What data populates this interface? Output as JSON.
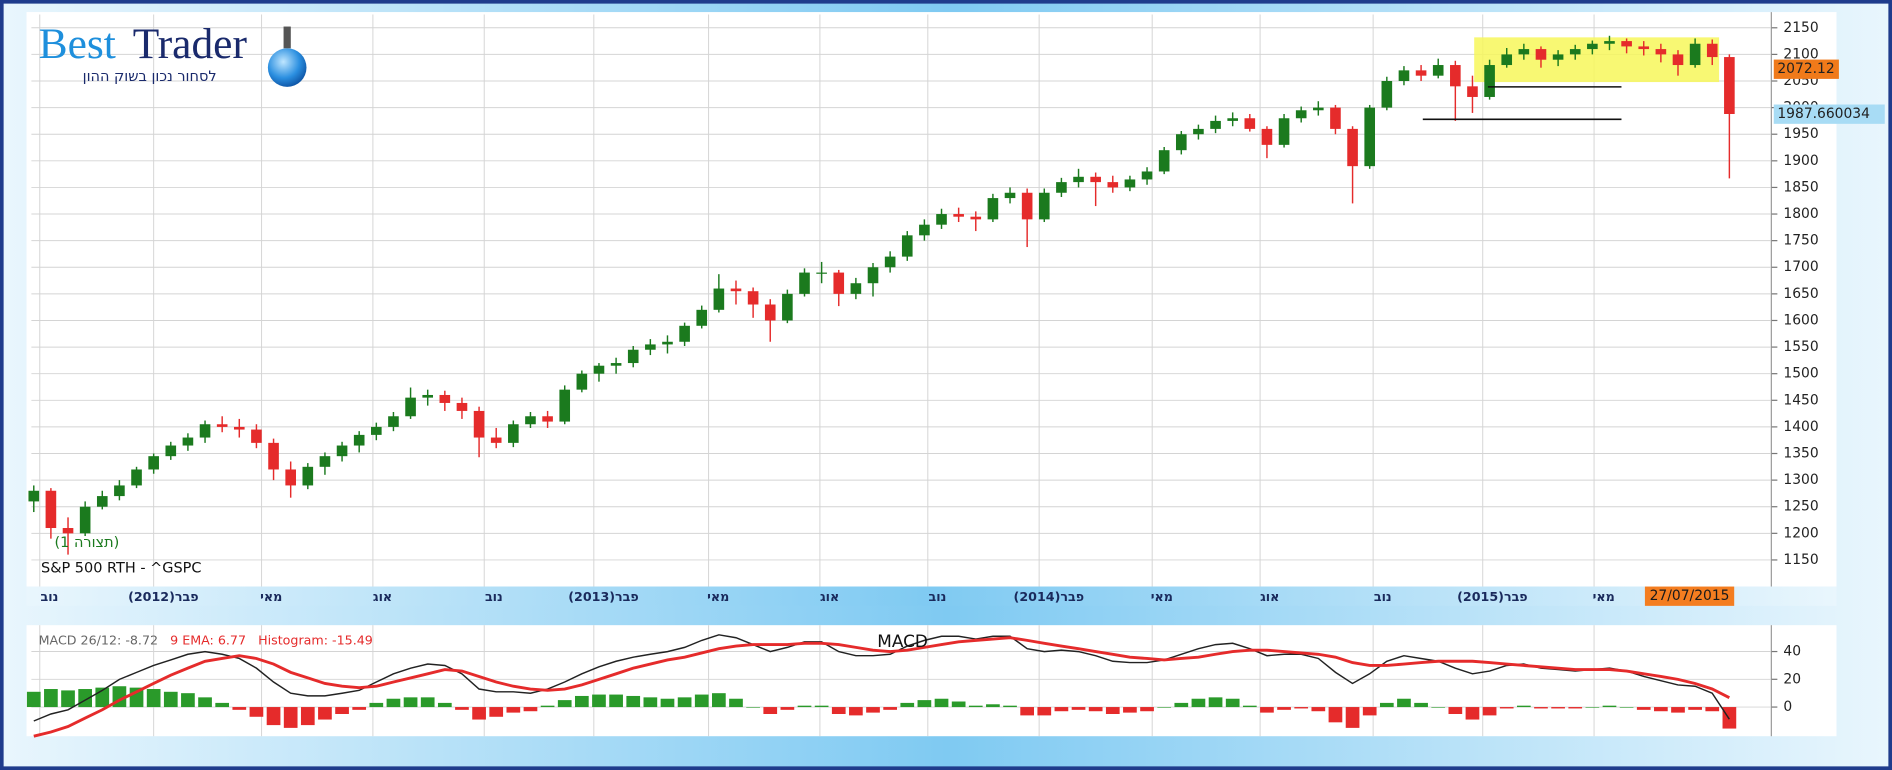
{
  "logo": {
    "brand_1": "Best",
    "brand_2": "Trader",
    "tagline": "לסחור נכון בשוק ההון"
  },
  "chart_data": [
    {
      "type": "candlestick",
      "title": "S&P 500 RTH - ^GSPC",
      "annotation": "(תצורה 1)",
      "colors": {
        "up": "#1b7a1e",
        "down": "#e52b2b"
      },
      "ohlc": [
        [
          1260,
          1290,
          1240,
          1280
        ],
        [
          1280,
          1285,
          1190,
          1210
        ],
        [
          1210,
          1230,
          1160,
          1200
        ],
        [
          1200,
          1260,
          1195,
          1250
        ],
        [
          1250,
          1280,
          1245,
          1270
        ],
        [
          1270,
          1300,
          1262,
          1290
        ],
        [
          1290,
          1325,
          1285,
          1320
        ],
        [
          1320,
          1350,
          1312,
          1345
        ],
        [
          1345,
          1372,
          1338,
          1365
        ],
        [
          1365,
          1388,
          1355,
          1380
        ],
        [
          1380,
          1412,
          1370,
          1405
        ],
        [
          1405,
          1420,
          1390,
          1400
        ],
        [
          1400,
          1415,
          1380,
          1395
        ],
        [
          1395,
          1405,
          1360,
          1370
        ],
        [
          1370,
          1378,
          1300,
          1320
        ],
        [
          1320,
          1335,
          1267,
          1290
        ],
        [
          1290,
          1332,
          1283,
          1325
        ],
        [
          1325,
          1352,
          1310,
          1345
        ],
        [
          1345,
          1372,
          1335,
          1365
        ],
        [
          1365,
          1392,
          1352,
          1385
        ],
        [
          1385,
          1408,
          1375,
          1400
        ],
        [
          1400,
          1428,
          1392,
          1420
        ],
        [
          1420,
          1474,
          1415,
          1455
        ],
        [
          1455,
          1470,
          1440,
          1460
        ],
        [
          1460,
          1468,
          1430,
          1445
        ],
        [
          1445,
          1455,
          1415,
          1430
        ],
        [
          1430,
          1438,
          1343,
          1380
        ],
        [
          1380,
          1398,
          1360,
          1370
        ],
        [
          1370,
          1412,
          1362,
          1405
        ],
        [
          1405,
          1428,
          1398,
          1420
        ],
        [
          1420,
          1430,
          1398,
          1410
        ],
        [
          1410,
          1478,
          1405,
          1470
        ],
        [
          1470,
          1506,
          1465,
          1500
        ],
        [
          1500,
          1520,
          1485,
          1515
        ],
        [
          1515,
          1530,
          1500,
          1520
        ],
        [
          1520,
          1552,
          1512,
          1545
        ],
        [
          1545,
          1565,
          1535,
          1555
        ],
        [
          1555,
          1572,
          1538,
          1560
        ],
        [
          1560,
          1596,
          1552,
          1590
        ],
        [
          1590,
          1628,
          1585,
          1620
        ],
        [
          1620,
          1687,
          1615,
          1660
        ],
        [
          1660,
          1675,
          1630,
          1655
        ],
        [
          1655,
          1662,
          1605,
          1630
        ],
        [
          1630,
          1640,
          1560,
          1600
        ],
        [
          1600,
          1658,
          1595,
          1650
        ],
        [
          1650,
          1698,
          1645,
          1690
        ],
        [
          1690,
          1710,
          1670,
          1690
        ],
        [
          1690,
          1695,
          1627,
          1650
        ],
        [
          1650,
          1680,
          1640,
          1670
        ],
        [
          1670,
          1708,
          1645,
          1700
        ],
        [
          1700,
          1730,
          1690,
          1720
        ],
        [
          1720,
          1768,
          1712,
          1760
        ],
        [
          1760,
          1790,
          1750,
          1780
        ],
        [
          1780,
          1810,
          1772,
          1800
        ],
        [
          1800,
          1812,
          1785,
          1795
        ],
        [
          1795,
          1805,
          1768,
          1790
        ],
        [
          1790,
          1838,
          1785,
          1830
        ],
        [
          1830,
          1850,
          1820,
          1840
        ],
        [
          1840,
          1848,
          1738,
          1790
        ],
        [
          1790,
          1848,
          1785,
          1840
        ],
        [
          1840,
          1868,
          1832,
          1860
        ],
        [
          1860,
          1885,
          1850,
          1870
        ],
        [
          1870,
          1878,
          1815,
          1860
        ],
        [
          1860,
          1872,
          1840,
          1850
        ],
        [
          1850,
          1872,
          1843,
          1865
        ],
        [
          1865,
          1888,
          1855,
          1880
        ],
        [
          1880,
          1926,
          1875,
          1920
        ],
        [
          1920,
          1956,
          1912,
          1950
        ],
        [
          1950,
          1968,
          1940,
          1960
        ],
        [
          1960,
          1985,
          1952,
          1975
        ],
        [
          1975,
          1991,
          1965,
          1980
        ],
        [
          1980,
          1988,
          1955,
          1960
        ],
        [
          1960,
          1965,
          1905,
          1930
        ],
        [
          1930,
          1988,
          1925,
          1980
        ],
        [
          1980,
          2002,
          1972,
          1995
        ],
        [
          1995,
          2012,
          1985,
          2000
        ],
        [
          2000,
          2005,
          1950,
          1960
        ],
        [
          1960,
          1965,
          1820,
          1890
        ],
        [
          1890,
          2005,
          1885,
          2000
        ],
        [
          2000,
          2058,
          1995,
          2050
        ],
        [
          2050,
          2078,
          2042,
          2070
        ],
        [
          2070,
          2080,
          2050,
          2060
        ],
        [
          2060,
          2092,
          2055,
          2080
        ],
        [
          2080,
          2088,
          1975,
          2040
        ],
        [
          2040,
          2060,
          1990,
          2020
        ],
        [
          2020,
          2090,
          2015,
          2080
        ],
        [
          2080,
          2112,
          2075,
          2100
        ],
        [
          2100,
          2120,
          2090,
          2110
        ],
        [
          2110,
          2115,
          2075,
          2090
        ],
        [
          2090,
          2108,
          2078,
          2100
        ],
        [
          2100,
          2118,
          2090,
          2110
        ],
        [
          2110,
          2126,
          2100,
          2120
        ],
        [
          2120,
          2135,
          2108,
          2125
        ],
        [
          2125,
          2130,
          2102,
          2115
        ],
        [
          2115,
          2125,
          2098,
          2110
        ],
        [
          2110,
          2120,
          2085,
          2100
        ],
        [
          2100,
          2108,
          2060,
          2080
        ],
        [
          2080,
          2130,
          2075,
          2120
        ],
        [
          2120,
          2128,
          2080,
          2095
        ],
        [
          2095,
          2100,
          1867,
          1988
        ]
      ],
      "xlim": [
        -0.14,
        101.45
      ],
      "xticks": [
        {
          "value": 0.35,
          "label": "נוב"
        },
        {
          "value": 7,
          "label": "(2012)פבר"
        },
        {
          "value": 13.3,
          "label": "מאי"
        },
        {
          "value": 19.8,
          "label": "אוג"
        },
        {
          "value": 26.3,
          "label": "נוב"
        },
        {
          "value": 32.7,
          "label": "(2013)פבר"
        },
        {
          "value": 39.4,
          "label": "מאי"
        },
        {
          "value": 45.9,
          "label": "אוג"
        },
        {
          "value": 52.2,
          "label": "נוב"
        },
        {
          "value": 58.7,
          "label": "(2014)פבר"
        },
        {
          "value": 65.3,
          "label": "מאי"
        },
        {
          "value": 71.6,
          "label": "אוג"
        },
        {
          "value": 78.2,
          "label": "נוב"
        },
        {
          "value": 84.6,
          "label": "(2015)פבר"
        },
        {
          "value": 91.1,
          "label": "מאי"
        }
      ],
      "ylim": [
        1100,
        2175
      ],
      "yticks": [
        1150,
        1200,
        1250,
        1300,
        1350,
        1400,
        1450,
        1500,
        1550,
        1600,
        1650,
        1700,
        1750,
        1800,
        1850,
        1900,
        1950,
        2000,
        2050,
        2100,
        2150
      ],
      "grid": true,
      "last_date": "27/07/2015",
      "price_labels": [
        {
          "value": 2072.12,
          "color": "#f07a1a"
        },
        {
          "value": 1987.660034,
          "color": "#a8dcf5"
        }
      ],
      "highlight": {
        "x": [
          84.1,
          98.4
        ],
        "y": [
          2048,
          2132
        ],
        "color": "#f7f75a"
      },
      "support_lines": [
        {
          "y": 2039,
          "x": [
            84.9,
            92.7
          ]
        },
        {
          "y": 1978,
          "x": [
            81.1,
            92.7
          ]
        }
      ]
    },
    {
      "type": "macd",
      "title": "MACD",
      "xlim": [
        -0.14,
        101.45
      ],
      "ylim": [
        -21,
        59
      ],
      "yticks": [
        0,
        20,
        40
      ],
      "grid": true,
      "series": [
        {
          "name": "MACD 26/12: -8.72",
          "kind": "line",
          "color": "#222222",
          "legend_color": "#666666",
          "values": [
            -10,
            -5,
            -2,
            5,
            12,
            20,
            25,
            30,
            34,
            38,
            40,
            38,
            35,
            28,
            18,
            10,
            8,
            8,
            10,
            12,
            18,
            24,
            28,
            31,
            30,
            24,
            13,
            11,
            11,
            10,
            13,
            18,
            24,
            29,
            33,
            36,
            38,
            40,
            43,
            48,
            52,
            50,
            45,
            40,
            43,
            47,
            47,
            40,
            37,
            37,
            38,
            44,
            48,
            51,
            51,
            49,
            51,
            51,
            42,
            40,
            41,
            40,
            37,
            33,
            32,
            32,
            34,
            38,
            42,
            45,
            46,
            42,
            37,
            38,
            38,
            35,
            25,
            17,
            24,
            33,
            37,
            35,
            33,
            28,
            24,
            26,
            30,
            31,
            28,
            27,
            26,
            27,
            28,
            26,
            22,
            19,
            16,
            15,
            10,
            -8.72
          ]
        },
        {
          "name": "9 EMA: 6.77",
          "kind": "line",
          "color": "#e52b2b",
          "legend_color": "#e52b2b",
          "values": [
            -21,
            -18,
            -14,
            -8,
            -2,
            5,
            11,
            17,
            23,
            28,
            33,
            35,
            37,
            35,
            31,
            25,
            21,
            17,
            15,
            14,
            15,
            18,
            21,
            24,
            27,
            26,
            22,
            18,
            15,
            13,
            12,
            13,
            16,
            20,
            24,
            28,
            31,
            34,
            36,
            39,
            42,
            44,
            45,
            45,
            45,
            46,
            46,
            45,
            43,
            41,
            40,
            41,
            43,
            45,
            47,
            48,
            49,
            50,
            48,
            46,
            44,
            42,
            40,
            38,
            36,
            35,
            34,
            35,
            36,
            38,
            40,
            41,
            41,
            40,
            39,
            38,
            36,
            32,
            30,
            30,
            31,
            32,
            33,
            33,
            33,
            32,
            31,
            30,
            29,
            28,
            27,
            27,
            27,
            26,
            24,
            22,
            20,
            17,
            13,
            6.77
          ]
        },
        {
          "name": "Histogram: -15.49",
          "kind": "histogram",
          "color": "#e52b2b",
          "up_color": "#2a9a2a",
          "legend_color": "#e52b2b",
          "values": [
            11,
            13,
            12,
            13,
            14,
            15,
            14,
            13,
            11,
            10,
            7,
            3,
            -2,
            -7,
            -13,
            -15,
            -13,
            -9,
            -5,
            -2,
            3,
            6,
            7,
            7,
            3,
            -2,
            -9,
            -7,
            -4,
            -3,
            1,
            5,
            8,
            9,
            9,
            8,
            7,
            6,
            7,
            9,
            10,
            6,
            0,
            -5,
            -2,
            1,
            1,
            -5,
            -6,
            -4,
            -2,
            3,
            5,
            6,
            4,
            1,
            2,
            1,
            -6,
            -6,
            -3,
            -2,
            -3,
            -5,
            -4,
            -3,
            0,
            3,
            6,
            7,
            6,
            1,
            -4,
            -2,
            -1,
            -3,
            -11,
            -15,
            -6,
            3,
            6,
            3,
            0,
            -5,
            -9,
            -6,
            -1,
            1,
            -1,
            -1,
            -1,
            0,
            1,
            0,
            -2,
            -3,
            -4,
            -2,
            -3,
            -15.49
          ]
        }
      ]
    }
  ]
}
